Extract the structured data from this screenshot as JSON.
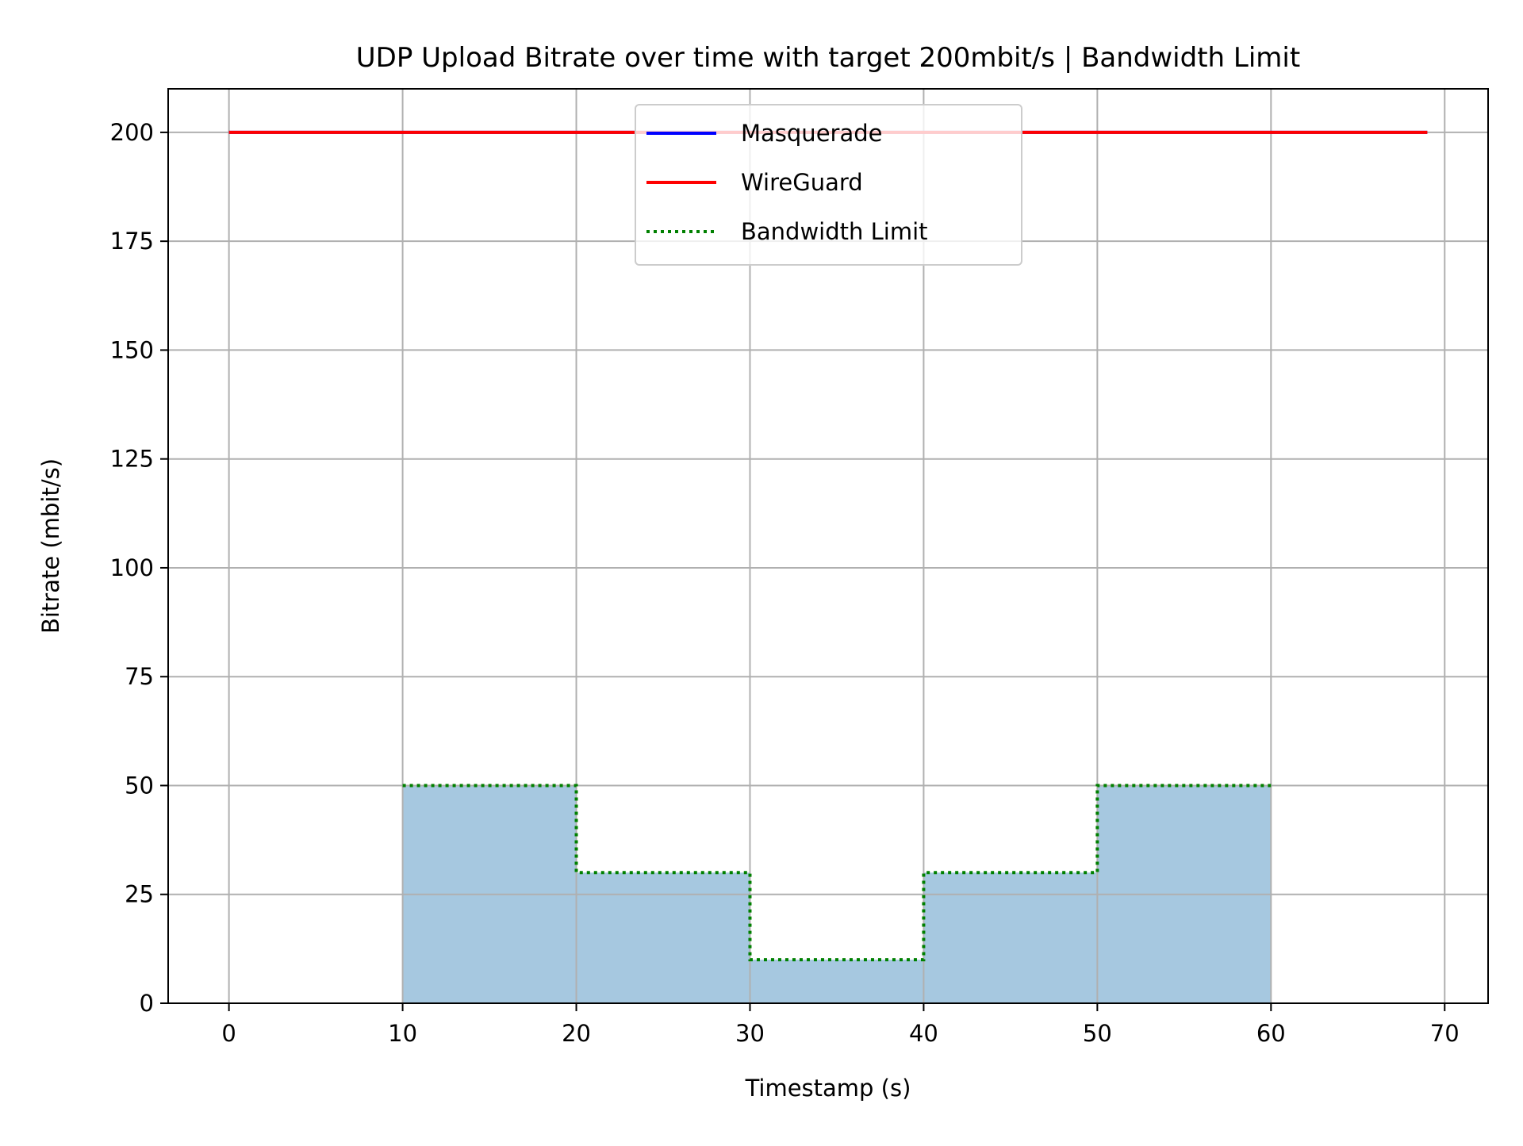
{
  "chart_data": {
    "type": "line",
    "title": "UDP Upload Bitrate over time with target 200mbit/s | Bandwidth Limit",
    "xlabel": "Timestamp (s)",
    "ylabel": "Bitrate (mbit/s)",
    "xlim": [
      -3.5,
      72.5
    ],
    "ylim": [
      0,
      210
    ],
    "xticks": [
      0,
      10,
      20,
      30,
      40,
      50,
      60,
      70
    ],
    "yticks": [
      0,
      25,
      50,
      75,
      100,
      125,
      150,
      175,
      200
    ],
    "grid": true,
    "legend_position": "upper center",
    "series": [
      {
        "name": "Masquerade",
        "color": "#0000ff",
        "style": "solid",
        "x": [
          0,
          69
        ],
        "y": [
          200,
          200
        ]
      },
      {
        "name": "WireGuard",
        "color": "#ff0000",
        "style": "solid",
        "x": [
          0,
          69
        ],
        "y": [
          200,
          200
        ]
      },
      {
        "name": "Bandwidth Limit",
        "color": "#008000",
        "style": "dotted",
        "steps": [
          {
            "x_start": 10,
            "x_end": 20,
            "y": 50
          },
          {
            "x_start": 20,
            "x_end": 30,
            "y": 30
          },
          {
            "x_start": 30,
            "x_end": 40,
            "y": 10
          },
          {
            "x_start": 40,
            "x_end": 50,
            "y": 30
          },
          {
            "x_start": 50,
            "x_end": 60,
            "y": 50
          }
        ]
      }
    ],
    "fill_color": "#a6c8e0"
  }
}
